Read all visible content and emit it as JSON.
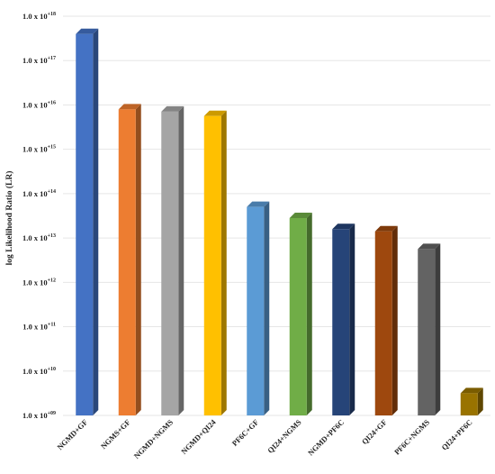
{
  "chart_data": {
    "type": "bar",
    "title": "",
    "xlabel": "",
    "ylabel": "log Likelihood Ratio (LR)",
    "yscale": "log10",
    "ylim_exponent": [
      9,
      18
    ],
    "ytick_base": "1.0 x 10",
    "ytick_exponents": [
      "+09",
      "+10",
      "+11",
      "+12",
      "+13",
      "+14",
      "+15",
      "+16",
      "+17",
      "+18"
    ],
    "grid": true,
    "bar_style": "3d",
    "categories": [
      "NGMD+GF",
      "NGMS+GF",
      "NGMD+NGMS",
      "NGMD+QI24",
      "PF6C+GF",
      "QI24+NGMS",
      "NGMD+PF6C",
      "QI24+GF",
      "PF6C+NGMS",
      "QI24+PF6C"
    ],
    "log10_values": [
      17.6,
      15.9,
      15.85,
      15.75,
      13.7,
      13.45,
      13.2,
      13.15,
      12.75,
      9.5
    ],
    "colors": [
      "#4472c4",
      "#ed7d31",
      "#a5a5a5",
      "#ffc000",
      "#5b9bd5",
      "#70ad47",
      "#264478",
      "#9e480e",
      "#636363",
      "#997300"
    ]
  }
}
